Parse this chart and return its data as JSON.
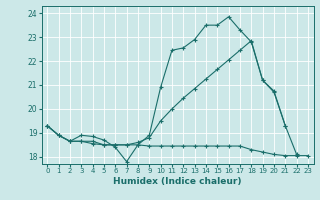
{
  "xlabel": "Humidex (Indice chaleur)",
  "bg_color": "#cce8e8",
  "grid_color": "#ffffff",
  "line_color": "#1a6e6a",
  "xlim": [
    -0.5,
    23.5
  ],
  "ylim": [
    17.7,
    24.3
  ],
  "yticks": [
    18,
    19,
    20,
    21,
    22,
    23,
    24
  ],
  "xticks": [
    0,
    1,
    2,
    3,
    4,
    5,
    6,
    7,
    8,
    9,
    10,
    11,
    12,
    13,
    14,
    15,
    16,
    17,
    18,
    19,
    20,
    21,
    22,
    23
  ],
  "line1_x": [
    0,
    1,
    2,
    3,
    4,
    5,
    6,
    7,
    8,
    9,
    10,
    11,
    12,
    13,
    14,
    15,
    16,
    17,
    18,
    19,
    20,
    21,
    22
  ],
  "line1_y": [
    19.3,
    18.9,
    18.65,
    18.9,
    18.85,
    18.7,
    18.4,
    17.8,
    18.5,
    18.9,
    20.9,
    22.45,
    22.55,
    22.9,
    23.5,
    23.5,
    23.85,
    23.3,
    22.8,
    21.2,
    20.75,
    19.3,
    18.1
  ],
  "line2_x": [
    0,
    1,
    2,
    3,
    4,
    5,
    6,
    7,
    8,
    9,
    10,
    11,
    12,
    13,
    14,
    15,
    16,
    17,
    18,
    19,
    20,
    21
  ],
  "line2_y": [
    19.3,
    18.9,
    18.65,
    18.65,
    18.65,
    18.5,
    18.5,
    18.5,
    18.6,
    18.8,
    19.5,
    20.0,
    20.45,
    20.85,
    21.25,
    21.65,
    22.05,
    22.45,
    22.85,
    21.2,
    20.7,
    19.3
  ],
  "line3_x": [
    0,
    1,
    2,
    3,
    4,
    5,
    6,
    7,
    8,
    9,
    10,
    11,
    12,
    13,
    14,
    15,
    16,
    17,
    18,
    19,
    20,
    21,
    22,
    23
  ],
  "line3_y": [
    19.3,
    18.9,
    18.65,
    18.65,
    18.55,
    18.5,
    18.5,
    18.5,
    18.5,
    18.45,
    18.45,
    18.45,
    18.45,
    18.45,
    18.45,
    18.45,
    18.45,
    18.45,
    18.3,
    18.2,
    18.1,
    18.05,
    18.05,
    18.05
  ]
}
